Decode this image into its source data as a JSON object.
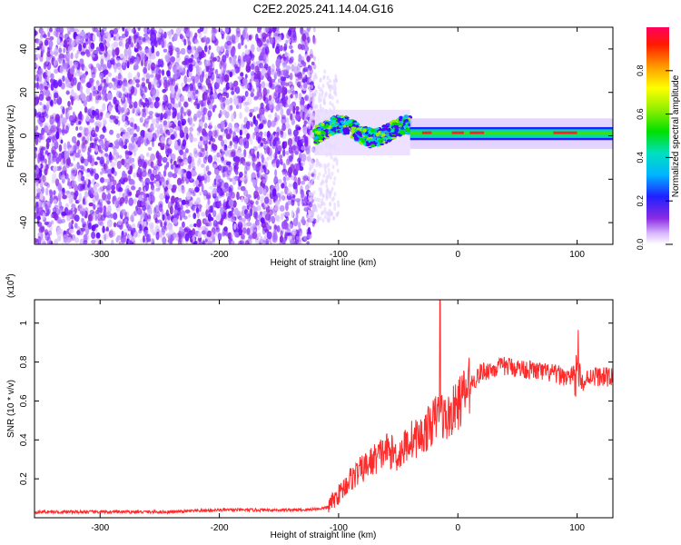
{
  "title": "C2E2.2025.241.14.04.G16",
  "chart_data": [
    {
      "type": "heatmap",
      "xlabel": "Height of straight line (km)",
      "ylabel": "Frequency (Hz)",
      "xlim": [
        -355,
        130
      ],
      "ylim": [
        -50,
        50
      ],
      "xticks": [
        -300,
        -200,
        -100,
        0,
        100
      ],
      "yticks": [
        -40,
        -20,
        0,
        20,
        40
      ],
      "colorbar": {
        "label": "Normalized spectral amplitude",
        "range": [
          0,
          1
        ],
        "ticks": [
          0.0,
          0.2,
          0.4,
          0.6,
          0.8
        ]
      },
      "regions": [
        {
          "x": [
            -355,
            -120
          ],
          "freq": [
            -50,
            50
          ],
          "level": "low",
          "colour": "purple noise"
        },
        {
          "x": [
            -120,
            -40
          ],
          "freq": [
            -5,
            8
          ],
          "level": "medium",
          "colour": "blue/green"
        },
        {
          "x": [
            -40,
            130
          ],
          "freq": [
            -2,
            4
          ],
          "level": "high",
          "colour": "green/red band near 0 Hz"
        }
      ]
    },
    {
      "type": "line",
      "xlabel": "Height of straight line (km)",
      "ylabel": "SNR (10 * v/v)",
      "yscale_label": "(x10",
      "yscale_exp": "4",
      "xlim": [
        -355,
        130
      ],
      "ylim": [
        0,
        1.12
      ],
      "xticks": [
        -300,
        -200,
        -100,
        0,
        100
      ],
      "yticks": [
        0.2,
        0.4,
        0.6,
        0.8,
        1
      ],
      "line_color": "#ff2a2a",
      "series": [
        {
          "name": "SNR",
          "x": [
            -355,
            -320,
            -280,
            -240,
            -200,
            -160,
            -130,
            -110,
            -100,
            -90,
            -80,
            -70,
            -60,
            -50,
            -40,
            -30,
            -20,
            -15,
            -10,
            0,
            10,
            20,
            40,
            60,
            80,
            95,
            100,
            105,
            110,
            130
          ],
          "y": [
            0.03,
            0.03,
            0.03,
            0.03,
            0.04,
            0.04,
            0.04,
            0.05,
            0.12,
            0.2,
            0.25,
            0.3,
            0.35,
            0.32,
            0.4,
            0.42,
            0.5,
            0.55,
            0.5,
            0.58,
            0.68,
            0.75,
            0.78,
            0.76,
            0.74,
            0.72,
            0.8,
            0.68,
            0.73,
            0.72
          ]
        }
      ],
      "peak": {
        "x": -15,
        "y": 1.12
      }
    }
  ],
  "colors": {
    "line": "#ff2a2a",
    "axis": "#000000"
  }
}
